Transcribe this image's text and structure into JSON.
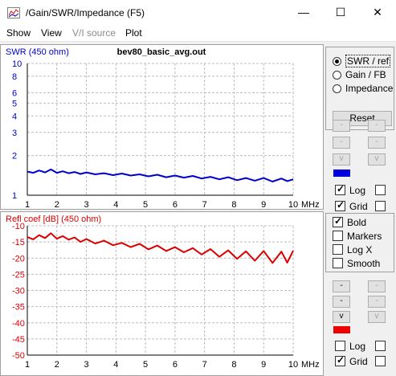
{
  "window": {
    "title": "/Gain/SWR/Impedance (F5)",
    "controls": {
      "minimize": "—",
      "maximize": "☐",
      "close": "✕"
    }
  },
  "menu": {
    "show": "Show",
    "view": "View",
    "vi_source": "V/I source",
    "plot": "Plot"
  },
  "panel": {
    "mode_options": [
      {
        "label": "SWR / ref",
        "selected": true
      },
      {
        "label": "Gain / FB",
        "selected": false
      },
      {
        "label": "Impedance",
        "selected": false
      }
    ],
    "reset_label": "Reset",
    "top_controls": {
      "up": "-",
      "down": "v",
      "swatch_color": "#0000dd",
      "log_label": "Log",
      "log_checked": true,
      "log2_checked": false,
      "grid_label": "Grid",
      "grid_checked": true,
      "grid2_checked": false
    },
    "options": [
      {
        "label": "Bold",
        "checked": true
      },
      {
        "label": "Markers",
        "checked": false
      },
      {
        "label": "Log X",
        "checked": false
      },
      {
        "label": "Smooth",
        "checked": false
      }
    ],
    "bottom_controls": {
      "up": "-",
      "down": "v",
      "swatch_color": "#ee0000",
      "log_label": "Log",
      "log_checked": false,
      "log2_checked": false,
      "grid_label": "Grid",
      "grid_checked": true,
      "grid2_checked": false
    }
  },
  "chart_data": [
    {
      "type": "line",
      "title": "bev80_basic_avg.out",
      "ylabel": "SWR (450 ohm)",
      "xunit": "MHz",
      "color": "#0000cc",
      "log_y": true,
      "grid": true,
      "xlim": [
        1,
        10
      ],
      "ylim": [
        1,
        10
      ],
      "x_ticks": [
        "1",
        "2",
        "3",
        "4",
        "5",
        "6",
        "7",
        "8",
        "9",
        "10"
      ],
      "y_ticks": [
        {
          "label": "10",
          "value": 10
        },
        {
          "label": "8",
          "value": 8
        },
        {
          "label": "6",
          "value": 6
        },
        {
          "label": "5",
          "value": 5
        },
        {
          "label": "4",
          "value": 4
        },
        {
          "label": "3",
          "value": 3
        },
        {
          "label": "2",
          "value": 2
        },
        {
          "label": "1",
          "value": 1
        }
      ],
      "x": [
        1.0,
        1.2,
        1.4,
        1.6,
        1.8,
        2.0,
        2.2,
        2.4,
        2.6,
        2.8,
        3.0,
        3.3,
        3.6,
        3.9,
        4.2,
        4.5,
        4.8,
        5.1,
        5.4,
        5.7,
        6.0,
        6.3,
        6.6,
        6.9,
        7.2,
        7.5,
        7.8,
        8.1,
        8.4,
        8.7,
        9.0,
        9.3,
        9.6,
        9.8,
        10.0
      ],
      "values": [
        1.51,
        1.48,
        1.54,
        1.49,
        1.57,
        1.48,
        1.52,
        1.47,
        1.5,
        1.45,
        1.49,
        1.44,
        1.47,
        1.42,
        1.46,
        1.41,
        1.44,
        1.39,
        1.43,
        1.37,
        1.41,
        1.36,
        1.4,
        1.34,
        1.38,
        1.32,
        1.37,
        1.3,
        1.35,
        1.29,
        1.35,
        1.27,
        1.34,
        1.28,
        1.32
      ]
    },
    {
      "type": "line",
      "ylabel": "Refl coef [dB] (450 ohm)",
      "xunit": "MHz",
      "color": "#dd0000",
      "grid": true,
      "xlim": [
        1,
        10
      ],
      "ylim": [
        -50,
        -10
      ],
      "x_ticks": [
        "1",
        "2",
        "3",
        "4",
        "5",
        "6",
        "7",
        "8",
        "9",
        "10"
      ],
      "y_ticks": [
        {
          "label": "-10",
          "value": -10
        },
        {
          "label": "-15",
          "value": -15
        },
        {
          "label": "-20",
          "value": -20
        },
        {
          "label": "-25",
          "value": -25
        },
        {
          "label": "-30",
          "value": -30
        },
        {
          "label": "-35",
          "value": -35
        },
        {
          "label": "-40",
          "value": -40
        },
        {
          "label": "-45",
          "value": -45
        },
        {
          "label": "-50",
          "value": -50
        }
      ],
      "x": [
        1.0,
        1.2,
        1.4,
        1.6,
        1.8,
        2.0,
        2.2,
        2.4,
        2.6,
        2.8,
        3.0,
        3.3,
        3.6,
        3.9,
        4.2,
        4.5,
        4.8,
        5.1,
        5.4,
        5.7,
        6.0,
        6.3,
        6.6,
        6.9,
        7.2,
        7.5,
        7.8,
        8.1,
        8.4,
        8.7,
        9.0,
        9.3,
        9.6,
        9.8,
        10.0
      ],
      "values": [
        -13.5,
        -14.2,
        -12.9,
        -13.8,
        -12.3,
        -14.0,
        -13.2,
        -14.3,
        -13.6,
        -15.0,
        -14.1,
        -15.5,
        -14.6,
        -16.0,
        -15.3,
        -16.6,
        -15.6,
        -17.3,
        -16.1,
        -17.8,
        -16.6,
        -18.2,
        -16.9,
        -18.9,
        -17.2,
        -19.6,
        -17.6,
        -20.2,
        -17.9,
        -20.8,
        -17.8,
        -21.5,
        -18.0,
        -21.4,
        -17.7
      ]
    }
  ]
}
